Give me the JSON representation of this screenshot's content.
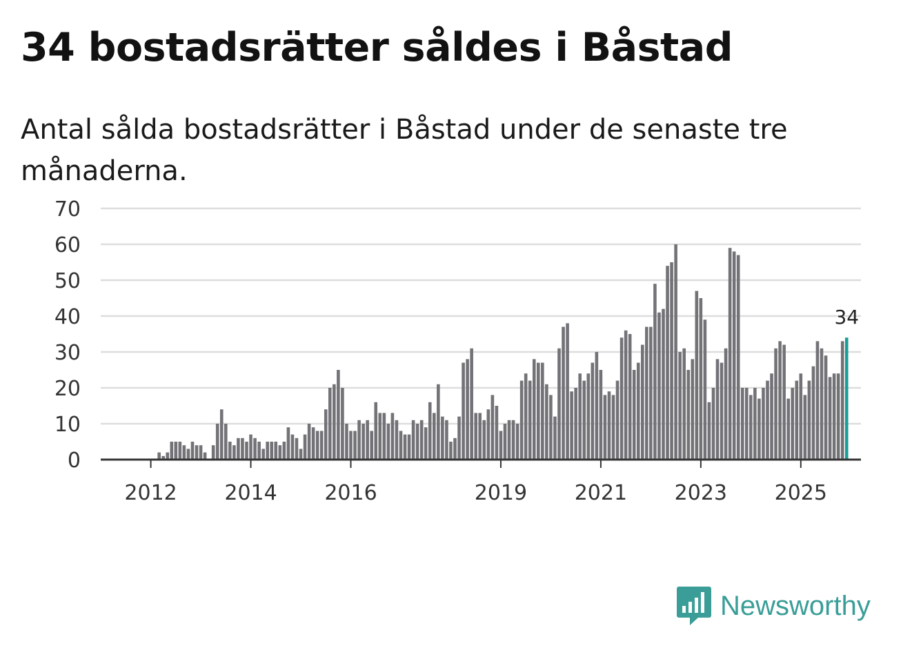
{
  "title": "34 bostadsrätter såldes i Båstad",
  "subtitle": "Antal sålda bostadsrätter i Båstad under de senaste tre månaderna.",
  "brand": {
    "name": "Newsworthy",
    "icon": "newsworthy-logo-icon",
    "color": "#3a9d97"
  },
  "colors": {
    "bar": "#737277",
    "highlight": "#1b9d97",
    "grid": "#dddddd",
    "axis": "#333333"
  },
  "chart_data": {
    "type": "bar",
    "title": "34 bostadsrätter såldes i Båstad",
    "xlabel": "",
    "ylabel": "",
    "ylim": [
      0,
      70
    ],
    "yticks": [
      "0",
      "10",
      "20",
      "30",
      "40",
      "50",
      "60",
      "70"
    ],
    "start": "2011-06",
    "xticks": [
      {
        "label": "2012",
        "index": 7
      },
      {
        "label": "2014",
        "index": 31
      },
      {
        "label": "2016",
        "index": 55
      },
      {
        "label": "2019",
        "index": 91
      },
      {
        "label": "2021",
        "index": 115
      },
      {
        "label": "2023",
        "index": 139
      },
      {
        "label": "2025",
        "index": 163
      }
    ],
    "last_value_label": "34",
    "grid": true,
    "values": [
      0,
      0,
      0,
      0,
      0,
      0,
      0,
      0,
      0,
      2,
      1,
      2,
      5,
      5,
      5,
      4,
      3,
      5,
      4,
      4,
      2,
      0,
      4,
      10,
      14,
      10,
      5,
      4,
      6,
      6,
      5,
      7,
      6,
      5,
      3,
      5,
      5,
      5,
      4,
      5,
      9,
      7,
      6,
      3,
      7,
      10,
      9,
      8,
      8,
      14,
      20,
      21,
      25,
      20,
      10,
      8,
      8,
      11,
      10,
      11,
      8,
      16,
      13,
      13,
      10,
      13,
      11,
      8,
      7,
      7,
      11,
      10,
      11,
      9,
      16,
      13,
      21,
      12,
      11,
      5,
      6,
      12,
      27,
      28,
      31,
      13,
      13,
      11,
      14,
      18,
      15,
      8,
      10,
      11,
      11,
      10,
      22,
      24,
      22,
      28,
      27,
      27,
      21,
      18,
      12,
      31,
      37,
      38,
      19,
      20,
      24,
      22,
      24,
      27,
      30,
      25,
      18,
      19,
      18,
      22,
      34,
      36,
      35,
      25,
      27,
      32,
      37,
      37,
      49,
      41,
      42,
      54,
      55,
      60,
      30,
      31,
      25,
      28,
      47,
      45,
      39,
      16,
      20,
      28,
      27,
      31,
      59,
      58,
      57,
      20,
      20,
      18,
      20,
      17,
      20,
      22,
      24,
      31,
      33,
      32,
      17,
      20,
      22,
      24,
      18,
      22,
      26,
      33,
      31,
      29,
      23,
      24,
      24,
      33,
      34
    ]
  }
}
